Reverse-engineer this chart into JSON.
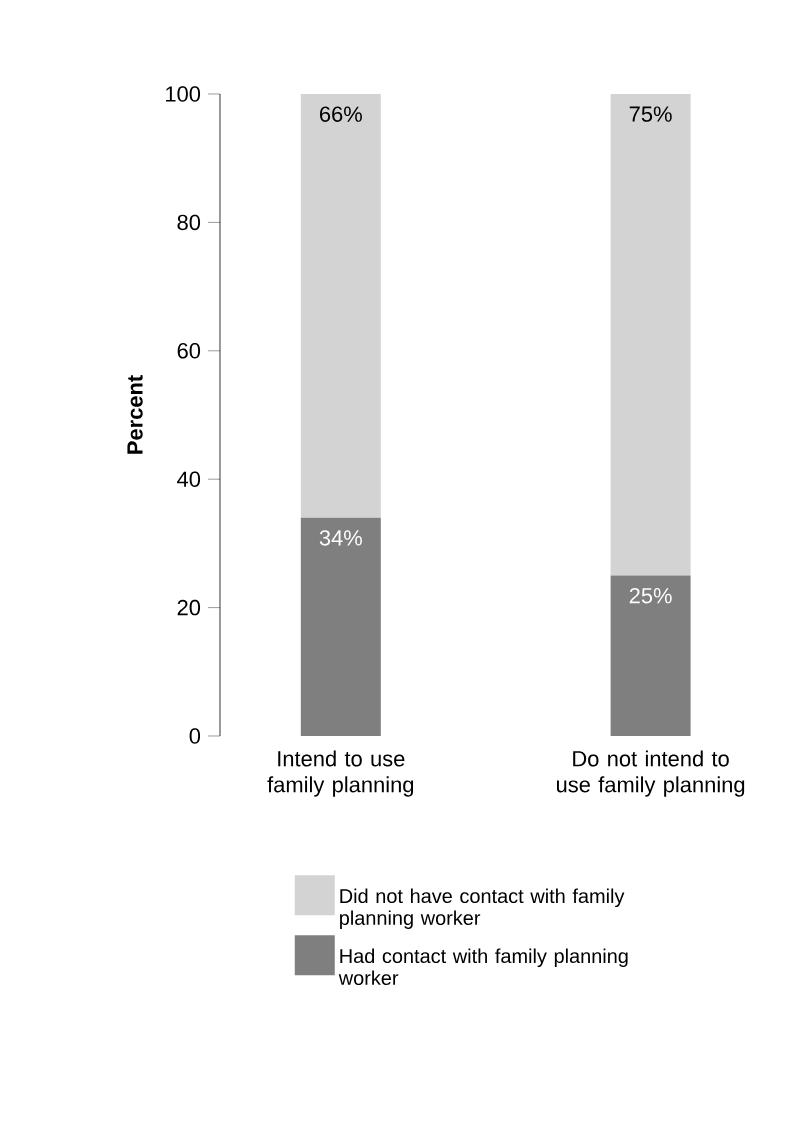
{
  "chart_data": {
    "type": "bar",
    "stacked": true,
    "ylabel": "Percent",
    "categories": [
      "Intend to use family planning",
      "Do not intend to use family planning"
    ],
    "series": [
      {
        "name": "Had contact with family planning worker",
        "color": "#7f7f7f",
        "values": [
          34,
          25
        ],
        "value_labels": [
          "34%",
          "25%"
        ]
      },
      {
        "name": "Did not have contact with family planning worker",
        "color": "#d3d3d3",
        "values": [
          66,
          75
        ],
        "value_labels": [
          "66%",
          "75%"
        ]
      }
    ],
    "ylim": [
      0,
      100
    ],
    "yticks": [
      0,
      20,
      40,
      60,
      80,
      100
    ],
    "grid": false,
    "legend": "bottom"
  }
}
